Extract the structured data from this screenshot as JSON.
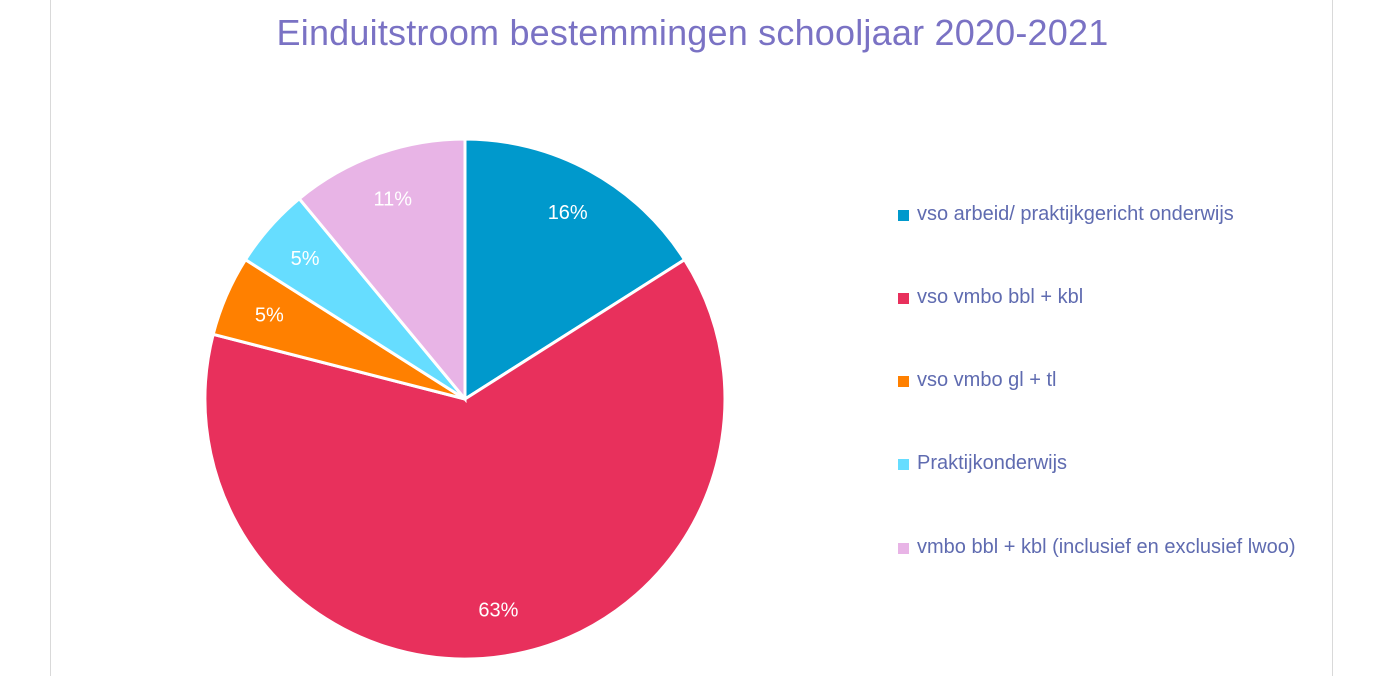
{
  "chart_data": {
    "type": "pie",
    "title": "Einduitstroom bestemmingen schooljaar 2020-2021",
    "categories": [
      "vso arbeid/ praktijkgericht onderwijs",
      "vso vmbo bbl + kbl",
      "vso vmbo gl + tl",
      "Praktijkonderwijs",
      "vmbo bbl + kbl (inclusief en exclusief lwoo)"
    ],
    "values": [
      16,
      63,
      5,
      5,
      11
    ],
    "data_labels": [
      "16%",
      "63%",
      "5%",
      "5%",
      "11%"
    ],
    "colors": [
      "#0099cc",
      "#e8305c",
      "#ff8000",
      "#66ddff",
      "#e8b4e6"
    ],
    "legend_position": "right"
  }
}
